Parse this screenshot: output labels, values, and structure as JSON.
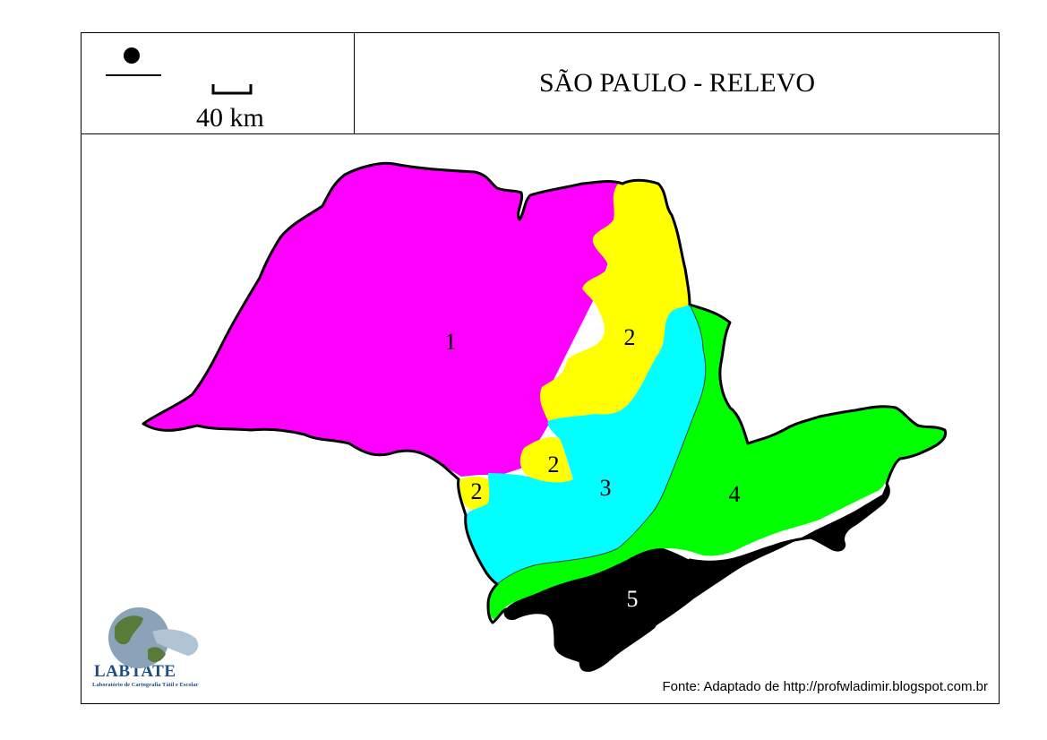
{
  "header": {
    "title": "SÃO PAULO - RELEVO",
    "scale_label": "40 km",
    "symbol_icon": "north-symbol-icon"
  },
  "map": {
    "regions": [
      {
        "id": "1",
        "label": "1",
        "color": "#ff00ff"
      },
      {
        "id": "2",
        "label": "2",
        "color": "#ffff00"
      },
      {
        "id": "3",
        "label": "3",
        "color": "#00ffff"
      },
      {
        "id": "4",
        "label": "4",
        "color": "#00ff00"
      },
      {
        "id": "5",
        "label": "5",
        "color": "#000000"
      }
    ],
    "outline_color": "#000000"
  },
  "footer": {
    "source": "Fonte: Adaptado de http://profwladimir.blogspot.com.br",
    "logo_name": "LABTATE",
    "logo_subtitle": "Laboratório de Cartografia Tátil e Escolar"
  }
}
